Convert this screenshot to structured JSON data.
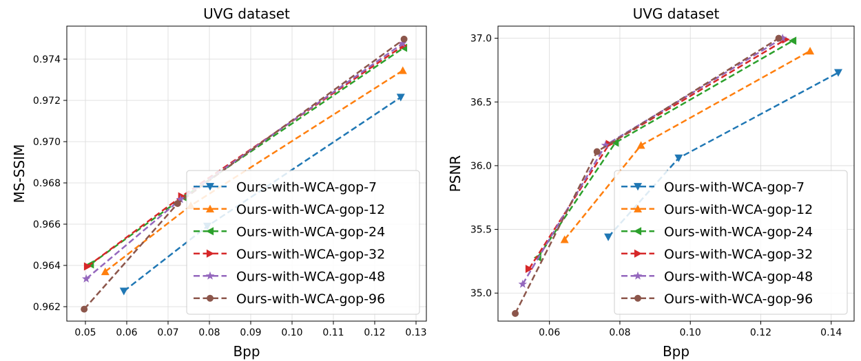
{
  "chart_data": [
    {
      "type": "line",
      "title": "UVG dataset",
      "xlabel": "Bpp",
      "ylabel": "MS-SSIM",
      "xlim": [
        0.0455,
        0.1325
      ],
      "ylim": [
        0.9613,
        0.9756
      ],
      "xticks": [
        0.05,
        0.06,
        0.07,
        0.08,
        0.09,
        0.1,
        0.11,
        0.12,
        0.13
      ],
      "xtick_labels": [
        "0.05",
        "0.06",
        "0.07",
        "0.08",
        "0.09",
        "0.10",
        "0.11",
        "0.12",
        "0.13"
      ],
      "yticks": [
        0.962,
        0.964,
        0.966,
        0.968,
        0.97,
        0.972,
        0.974
      ],
      "ytick_labels": [
        "0.962",
        "0.964",
        "0.966",
        "0.968",
        "0.970",
        "0.972",
        "0.974"
      ],
      "grid": true,
      "legend_position": "lower-right",
      "series": [
        {
          "name": "Ours-with-WCA-gop-7",
          "color": "#1f77b4",
          "marker": "triangle-down",
          "x": [
            0.0593,
            0.0795,
            0.1263
          ],
          "y": [
            0.96275,
            0.9659,
            0.97215
          ]
        },
        {
          "name": "Ours-with-WCA-gop-12",
          "color": "#ff7f0e",
          "marker": "triangle-up",
          "x": [
            0.0548,
            0.0755,
            0.1268
          ],
          "y": [
            0.9637,
            0.9669,
            0.97345
          ]
        },
        {
          "name": "Ours-with-WCA-gop-24",
          "color": "#2ca02c",
          "marker": "triangle-left",
          "x": [
            0.0512,
            0.0737,
            0.127
          ],
          "y": [
            0.96405,
            0.9673,
            0.97455
          ]
        },
        {
          "name": "Ours-with-WCA-gop-32",
          "color": "#d62728",
          "marker": "triangle-right",
          "x": [
            0.0505,
            0.0733,
            0.1269
          ],
          "y": [
            0.96395,
            0.96735,
            0.97465
          ]
        },
        {
          "name": "Ours-with-WCA-gop-48",
          "color": "#9467bd",
          "marker": "star",
          "x": [
            0.0502,
            0.073,
            0.1267
          ],
          "y": [
            0.96335,
            0.9672,
            0.97475
          ]
        },
        {
          "name": "Ours-with-WCA-gop-96",
          "color": "#8c564b",
          "marker": "circle",
          "x": [
            0.0497,
            0.0723,
            0.1271
          ],
          "y": [
            0.96188,
            0.967,
            0.97497
          ]
        }
      ]
    },
    {
      "type": "line",
      "title": "UVG dataset",
      "xlabel": "Bpp",
      "ylabel": "PSNR",
      "xlim": [
        0.0454,
        0.1465
      ],
      "ylim": [
        34.78,
        37.095
      ],
      "xticks": [
        0.06,
        0.08,
        0.1,
        0.12,
        0.14
      ],
      "xtick_labels": [
        "0.06",
        "0.08",
        "0.10",
        "0.12",
        "0.14"
      ],
      "yticks": [
        35.0,
        35.5,
        36.0,
        36.5,
        37.0
      ],
      "ytick_labels": [
        "35.0",
        "35.5",
        "36.0",
        "36.5",
        "37.0"
      ],
      "grid": true,
      "legend_position": "lower-right",
      "series": [
        {
          "name": "Ours-with-WCA-gop-7",
          "color": "#1f77b4",
          "marker": "triangle-down",
          "x": [
            0.0767,
            0.0967,
            0.142
          ],
          "y": [
            35.44,
            36.06,
            36.73
          ]
        },
        {
          "name": "Ours-with-WCA-gop-12",
          "color": "#ff7f0e",
          "marker": "triangle-up",
          "x": [
            0.0643,
            0.086,
            0.134
          ],
          "y": [
            35.42,
            36.16,
            36.9
          ]
        },
        {
          "name": "Ours-with-WCA-gop-24",
          "color": "#2ca02c",
          "marker": "triangle-left",
          "x": [
            0.0567,
            0.0787,
            0.1291
          ],
          "y": [
            35.28,
            36.18,
            36.98
          ]
        },
        {
          "name": "Ours-with-WCA-gop-32",
          "color": "#d62728",
          "marker": "triangle-right",
          "x": [
            0.0542,
            0.077,
            0.1271
          ],
          "y": [
            35.19,
            36.17,
            36.99
          ]
        },
        {
          "name": "Ours-with-WCA-gop-48",
          "color": "#9467bd",
          "marker": "star",
          "x": [
            0.0524,
            0.0759,
            0.1262
          ],
          "y": [
            35.07,
            36.16,
            37.0
          ]
        },
        {
          "name": "Ours-with-WCA-gop-96",
          "color": "#8c564b",
          "marker": "circle",
          "x": [
            0.0503,
            0.0735,
            0.1251
          ],
          "y": [
            34.84,
            36.11,
            37.0
          ]
        }
      ]
    }
  ]
}
